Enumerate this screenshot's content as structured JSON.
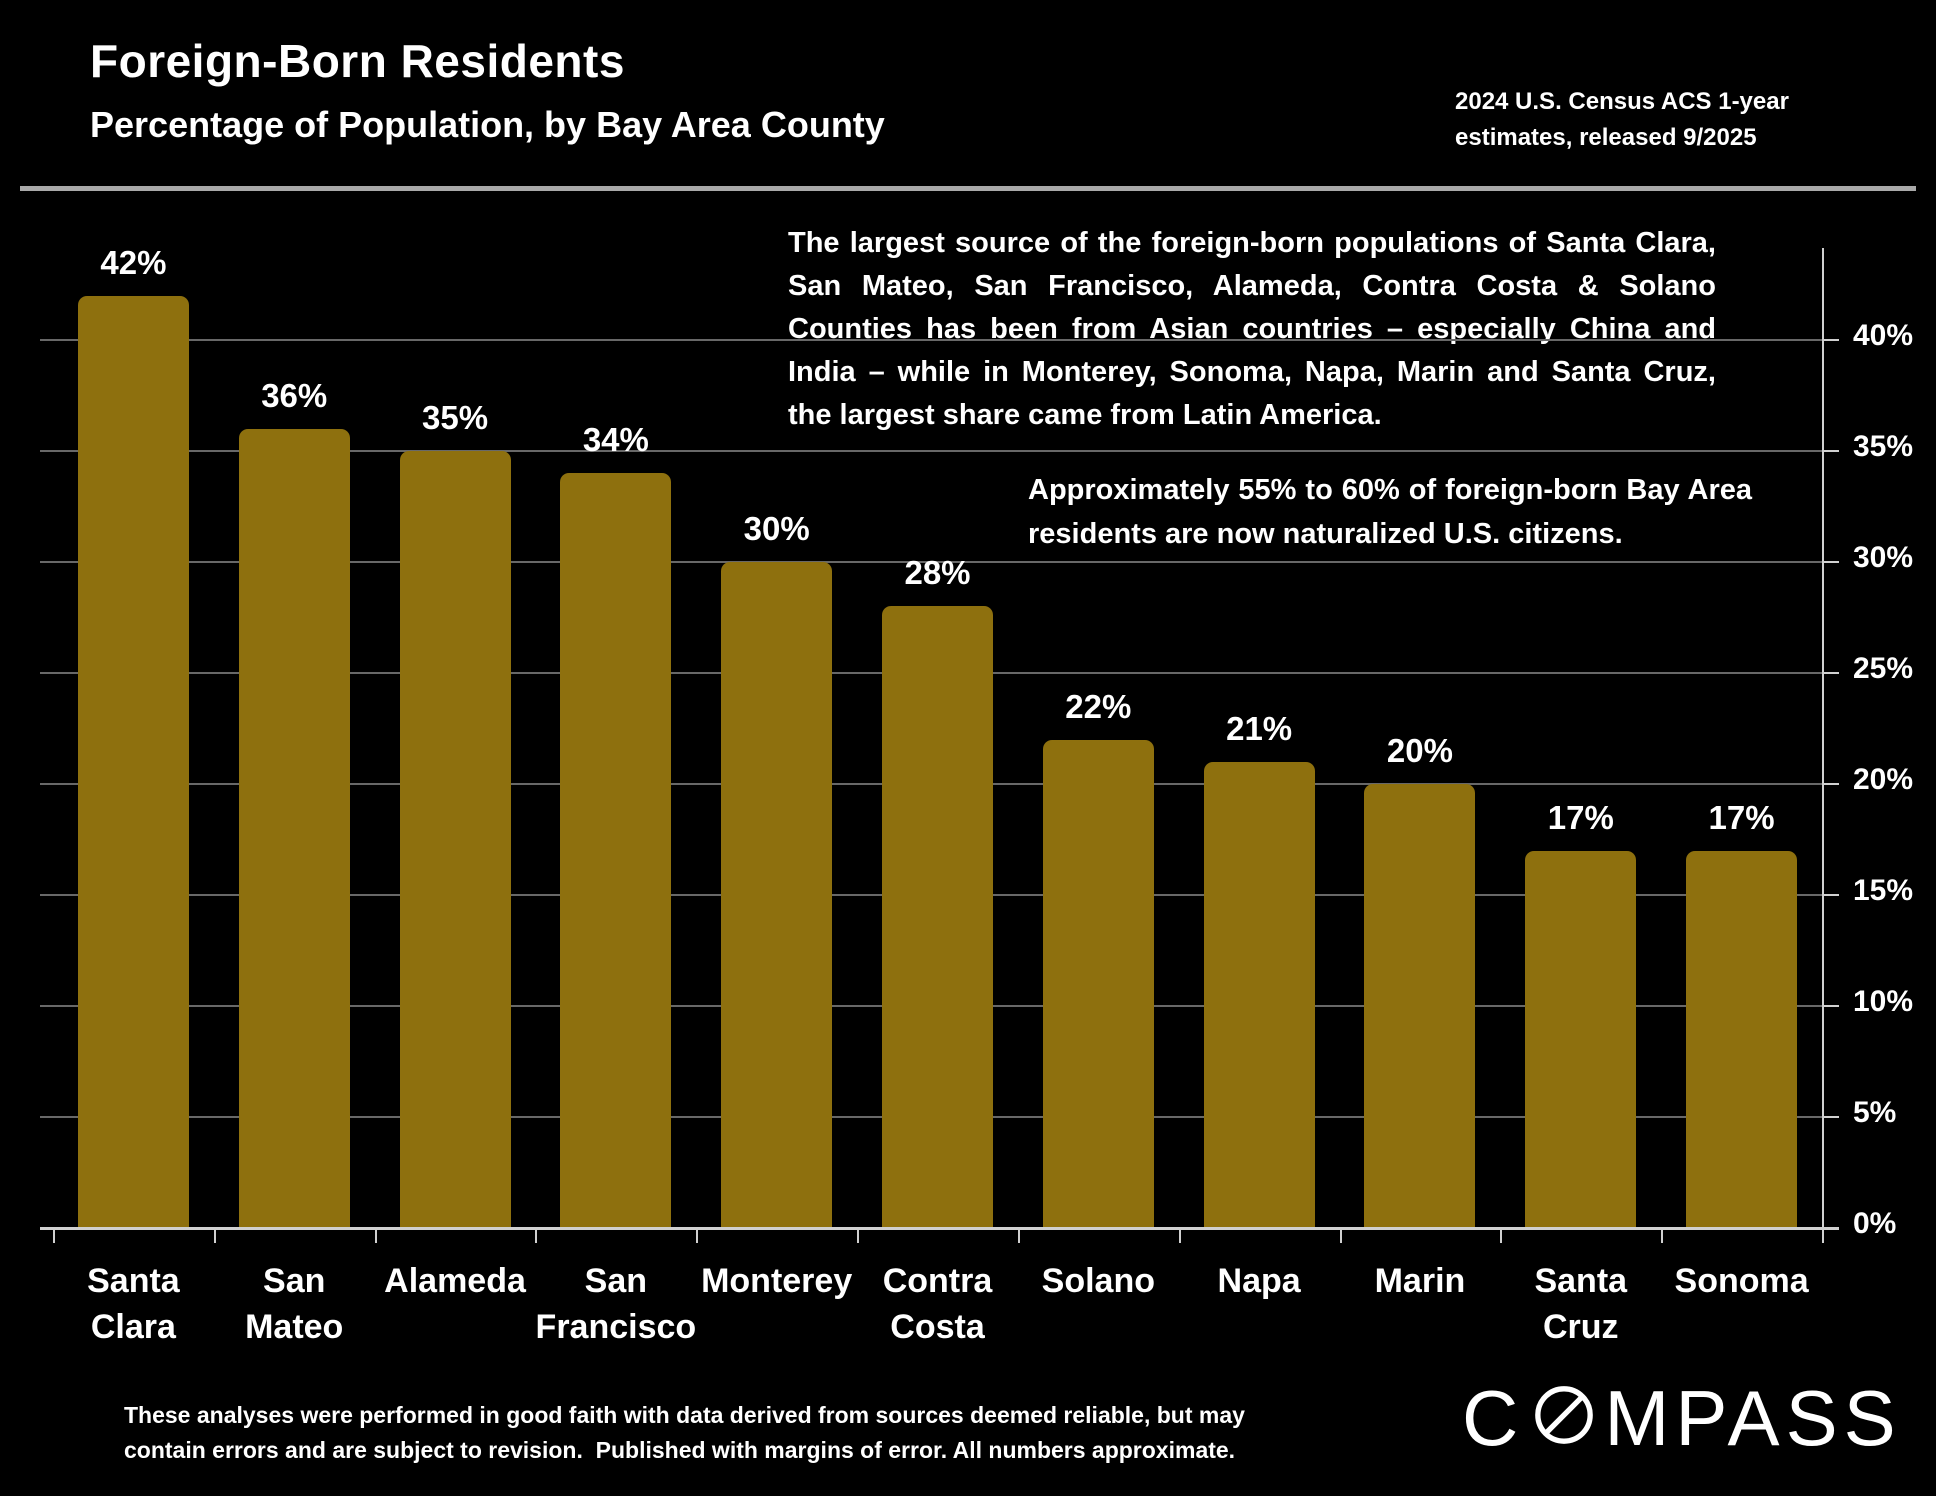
{
  "header": {
    "caption_line1": "2024 U.S. Census ACS 1-year",
    "caption_line2": "estimates, released 9/2025"
  },
  "annotations": {
    "primary": "The largest source of the foreign-born populations of Santa Clara, San Mateo, San Francisco, Alameda, Contra Costa & Solano Counties has been from Asian countries – especially China and India – while in Monterey, Sonoma, Napa, Marin and Santa Cruz, the largest share came from Latin America.",
    "secondary": "Approximately 55% to 60% of foreign-born Bay Area residents are now naturalized U.S. citizens."
  },
  "chart_data": {
    "type": "bar",
    "title": "Foreign-Born Residents",
    "subtitle": "Percentage of Population, by Bay Area County",
    "categories": [
      "Santa Clara",
      "San Mateo",
      "Alameda",
      "San Francisco",
      "Monterey",
      "Contra Costa",
      "Solano",
      "Napa",
      "Marin",
      "Santa Cruz",
      "Sonoma"
    ],
    "values": [
      42,
      36,
      35,
      34,
      30,
      28,
      22,
      21,
      20,
      17,
      17
    ],
    "bar_labels": [
      "42%",
      "36%",
      "35%",
      "34%",
      "30%",
      "28%",
      "22%",
      "21%",
      "20%",
      "17%",
      "17%"
    ],
    "y_ticks": [
      {
        "value": 0,
        "label": "0%"
      },
      {
        "value": 5,
        "label": "5%"
      },
      {
        "value": 10,
        "label": "10%"
      },
      {
        "value": 15,
        "label": "15%"
      },
      {
        "value": 20,
        "label": "20%"
      },
      {
        "value": 25,
        "label": "25%"
      },
      {
        "value": 30,
        "label": "30%"
      },
      {
        "value": 35,
        "label": "35%"
      },
      {
        "value": 40,
        "label": "40%"
      }
    ],
    "ylim": [
      0,
      44
    ],
    "xlabel": "",
    "ylabel": "",
    "grid": true,
    "legend": false,
    "gridlines_behind_bars": true,
    "axis_side": "right",
    "colors": {
      "background": "#000000",
      "bar": "#8E700E",
      "gridline": "#686868",
      "axis": "#d0d0d0",
      "text": "#ffffff",
      "rule": "#a9a9a9"
    }
  },
  "footer": {
    "disclaimer_line1": "These analyses were performed in good faith with data derived from sources deemed reliable, but may",
    "disclaimer_line2": "contain errors and are subject to revision.  Published with margins of error. All numbers approximate.",
    "logo_prefix": "C",
    "logo_suffix": "MPASS"
  }
}
